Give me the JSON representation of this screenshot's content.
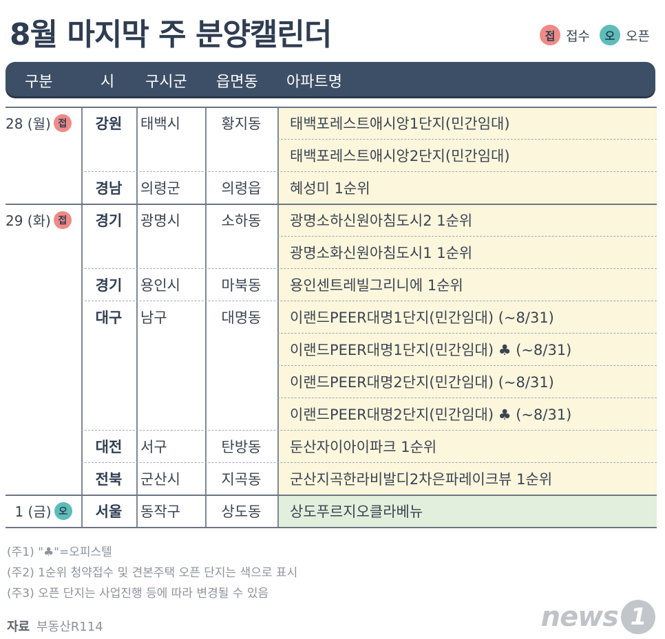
{
  "title": "8월 마지막 주 분양캘린더",
  "legend": {
    "receipt_badge": "접",
    "receipt_label": "접수",
    "open_badge": "오",
    "open_label": "오픈"
  },
  "header": {
    "col1": "구분",
    "col2": "시",
    "col3": "구시군",
    "col4": "읍면동",
    "col5": "아파트명"
  },
  "rows": [
    {
      "date": "28 (월)",
      "badge": "접",
      "region": "강원",
      "city": "태백시",
      "dong": "황지동",
      "apt": "태백포레스트애시앙1단지(민간임대)"
    },
    {
      "date": "",
      "badge": "",
      "region": "",
      "city": "",
      "dong": "",
      "apt": "태백포레스트애시앙2단지(민간임대)"
    },
    {
      "date": "",
      "badge": "",
      "region": "경남",
      "city": "의령군",
      "dong": "의령읍",
      "apt": "혜성미 1순위"
    },
    {
      "date": "29 (화)",
      "badge": "접",
      "region": "경기",
      "city": "광명시",
      "dong": "소하동",
      "apt": "광명소하신원아침도시2 1순위"
    },
    {
      "date": "",
      "badge": "",
      "region": "",
      "city": "",
      "dong": "",
      "apt": "광명소화신원아침도시1 1순위"
    },
    {
      "date": "",
      "badge": "",
      "region": "경기",
      "city": "용인시",
      "dong": "마북동",
      "apt": "용인센트레빌그리니에 1순위"
    },
    {
      "date": "",
      "badge": "",
      "region": "대구",
      "city": "남구",
      "dong": "대명동",
      "apt": "이랜드PEER대명1단지(민간임대) (~8/31)"
    },
    {
      "date": "",
      "badge": "",
      "region": "",
      "city": "",
      "dong": "",
      "apt": "이랜드PEER대명1단지(민간임대) ♣ (~8/31)"
    },
    {
      "date": "",
      "badge": "",
      "region": "",
      "city": "",
      "dong": "",
      "apt": "이랜드PEER대명2단지(민간임대) (~8/31)"
    },
    {
      "date": "",
      "badge": "",
      "region": "",
      "city": "",
      "dong": "",
      "apt": "이랜드PEER대명2단지(민간임대) ♣ (~8/31)"
    },
    {
      "date": "",
      "badge": "",
      "region": "대전",
      "city": "서구",
      "dong": "탄방동",
      "apt": "둔산자이아이파크 1순위"
    },
    {
      "date": "",
      "badge": "",
      "region": "전북",
      "city": "군산시",
      "dong": "지곡동",
      "apt": "군산지곡한라비발디2차은파레이크뷰 1순위"
    },
    {
      "date": "1 (금)",
      "badge": "오",
      "region": "서울",
      "city": "동작구",
      "dong": "상도동",
      "apt": "상도푸르지오클라베뉴"
    }
  ],
  "notes": [
    "(주1) \"♣\"=오피스텔",
    "(주2) 1순위 청약접수 및 견본주택 오픈 단지는 색으로  표시",
    "(주3) 오픈 단지는 사업진행 등에 따라 변경될 수 있음"
  ],
  "source_label": "자료",
  "source_value": "부동산R114",
  "logo_text": "news",
  "logo_mark": "1",
  "colors": {
    "header_bg": "#3d4f66",
    "receipt": "#ef8a87",
    "open": "#5dbdb8",
    "apt_bg": "#fbf6dc",
    "open_bg": "#e2efdc"
  }
}
